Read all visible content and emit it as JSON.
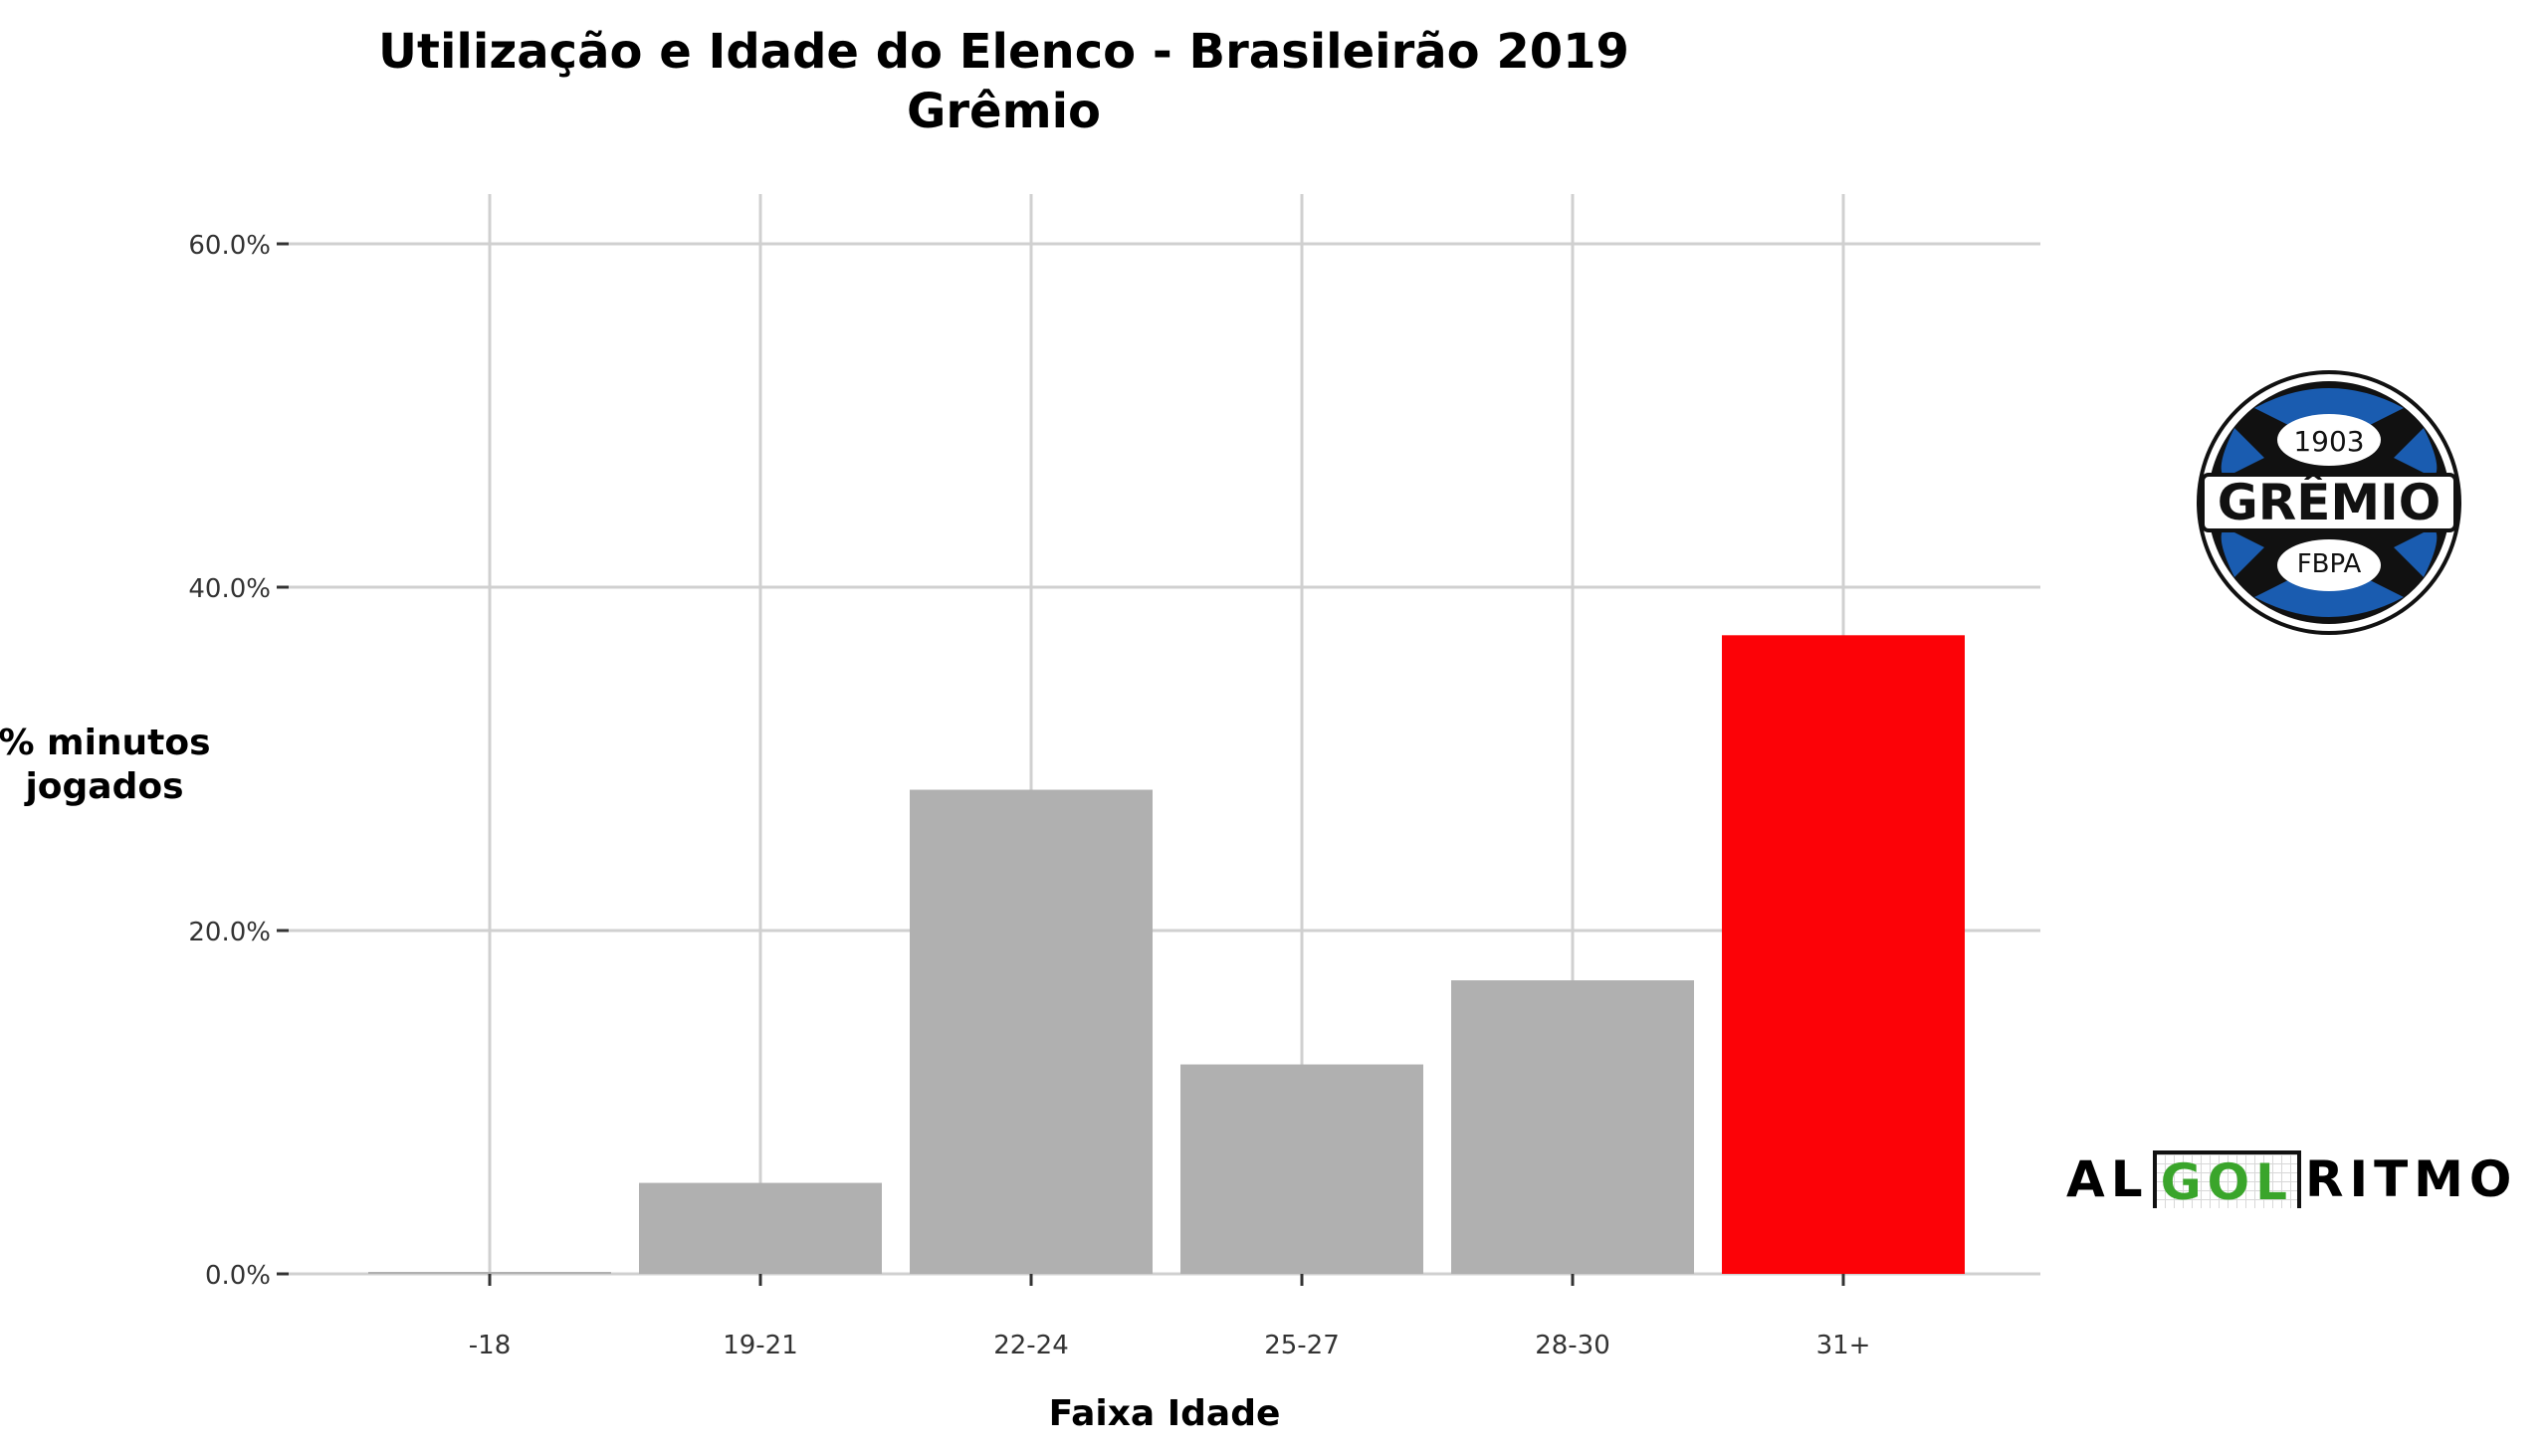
{
  "chart_data": {
    "type": "bar",
    "title": "Utilização e Idade do Elenco - Brasileirão 2019",
    "subtitle": "Grêmio",
    "xlabel": "Faixa Idade",
    "ylabel": "% minutos jogados",
    "categories": [
      "-18",
      "19-21",
      "22-24",
      "25-27",
      "28-30",
      "31+"
    ],
    "values": [
      0.0,
      5.3,
      28.2,
      12.2,
      17.1,
      37.2
    ],
    "highlight_index": 5,
    "ylim": [
      0,
      63
    ],
    "yticks": [
      0,
      20,
      40,
      60
    ],
    "ytick_labels": [
      "0.0%",
      "20.0%",
      "40.0%",
      "60.0%"
    ],
    "grid": true,
    "colors": {
      "bar": "#b0b0b0",
      "highlight": "#fc0207",
      "grid": "#d0d0d0"
    }
  },
  "logo": {
    "year": "1903",
    "name": "GRÊMIO",
    "abbr": "FBPA",
    "colors": {
      "blue": "#1a5cb0",
      "black": "#111111"
    }
  },
  "brand": {
    "pre": "AL",
    "mid": "GOL",
    "post": "RITMO"
  }
}
